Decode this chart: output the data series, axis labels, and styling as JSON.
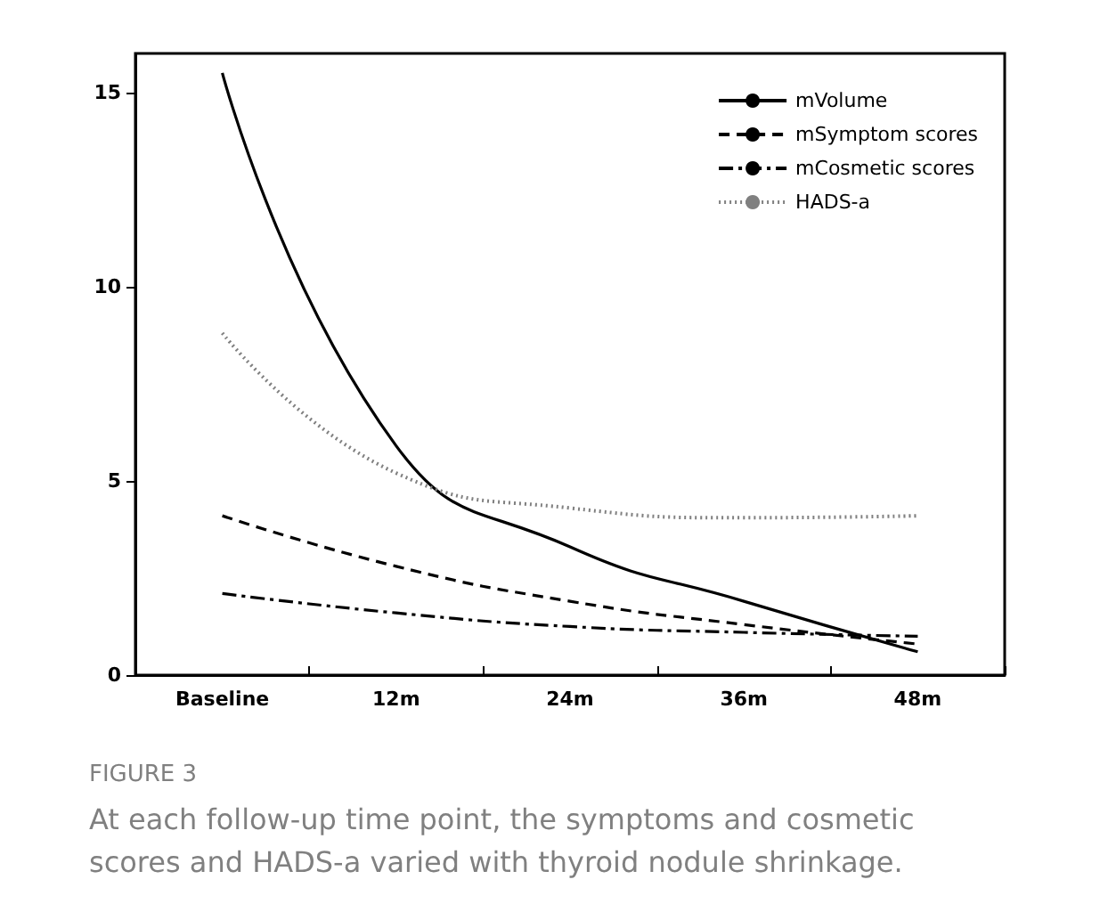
{
  "chart_data": {
    "type": "line",
    "categories": [
      "Baseline",
      "12m",
      "24m",
      "36m",
      "48m"
    ],
    "series": [
      {
        "name": "mVolume",
        "color": "#000000",
        "line_style": "solid",
        "values": [
          15.5,
          5.9,
          3.3,
          1.9,
          0.6
        ]
      },
      {
        "name": "mSymptom scores",
        "color": "#000000",
        "line_style": "dashed",
        "values": [
          4.1,
          2.8,
          1.9,
          1.3,
          0.8
        ]
      },
      {
        "name": "mCosmetic scores",
        "color": "#000000",
        "line_style": "dashed",
        "values": [
          2.1,
          1.6,
          1.25,
          1.1,
          1.0
        ]
      },
      {
        "name": "HADS-a",
        "color": "#808080",
        "line_style": "dotted",
        "values": [
          8.8,
          5.2,
          4.3,
          4.05,
          4.1
        ]
      }
    ],
    "ylim": [
      0,
      16
    ],
    "yticks": [
      0,
      5,
      10,
      15
    ],
    "grid": false,
    "legend": "top right",
    "marker": "none",
    "annotations": [
      "FIGURE 3",
      "At each follow-up time point, the symptoms and cosmetic scores and HADS-a varied with thyroid nodule shrinkage."
    ]
  }
}
